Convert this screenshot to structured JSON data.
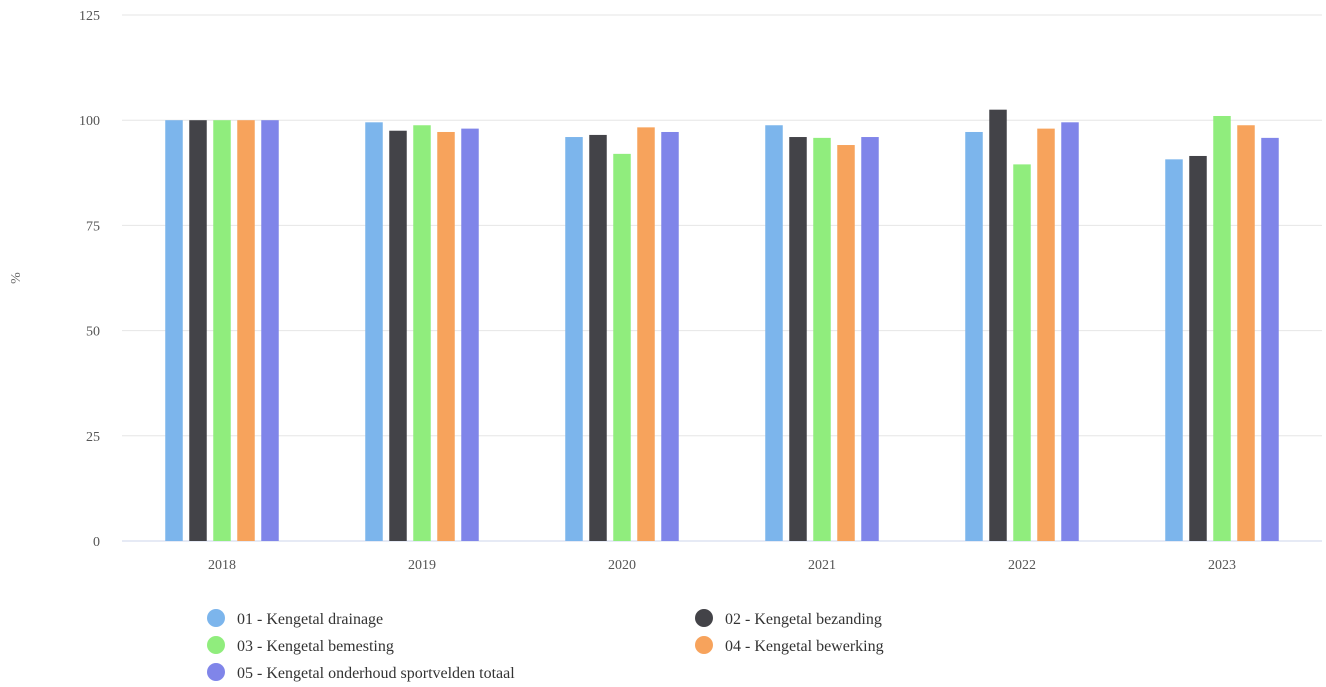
{
  "chart_data": {
    "type": "bar",
    "title": "",
    "xlabel": "",
    "ylabel": "%",
    "ylim": [
      0,
      125
    ],
    "yticks": [
      0,
      25,
      50,
      75,
      100,
      125
    ],
    "grid": true,
    "legend_position": "bottom",
    "categories": [
      "2018",
      "2019",
      "2020",
      "2021",
      "2022",
      "2023"
    ],
    "series": [
      {
        "name": "01 - Kengetal drainage",
        "color": "#7cb5ec",
        "values": [
          100,
          99.5,
          96,
          98.8,
          97.2,
          90.7
        ]
      },
      {
        "name": "02 - Kengetal bezanding",
        "color": "#434348",
        "values": [
          100,
          97.5,
          96.5,
          96,
          102.5,
          91.5
        ]
      },
      {
        "name": "03 - Kengetal bemesting",
        "color": "#90ed7d",
        "values": [
          100,
          98.8,
          92,
          95.8,
          89.5,
          101
        ]
      },
      {
        "name": "04 - Kengetal bewerking",
        "color": "#f7a35c",
        "values": [
          100,
          97.2,
          98.3,
          94.1,
          98,
          98.8
        ]
      },
      {
        "name": "05 - Kengetal onderhoud sportvelden totaal",
        "color": "#8085e9",
        "values": [
          100,
          98,
          97.2,
          96,
          99.5,
          95.8
        ]
      }
    ]
  }
}
